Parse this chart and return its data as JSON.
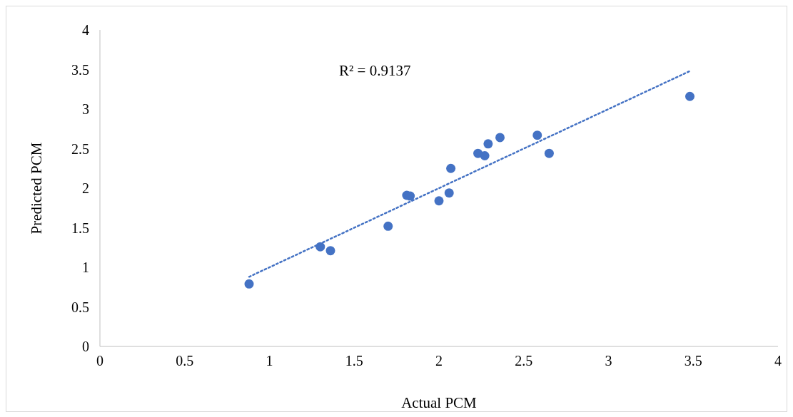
{
  "chart_data": {
    "type": "scatter",
    "xlabel": "Actual PCM",
    "ylabel": "Predicted PCM",
    "xlim": [
      0,
      4
    ],
    "ylim": [
      0,
      4
    ],
    "xticks": [
      0,
      0.5,
      1,
      1.5,
      2,
      2.5,
      3,
      3.5,
      4
    ],
    "yticks": [
      0,
      0.5,
      1,
      1.5,
      2,
      2.5,
      3,
      3.5,
      4
    ],
    "grid": false,
    "annotations": [
      "R² = 0.9137"
    ],
    "series": [
      {
        "color": "#4472c4",
        "marker": "circle",
        "x": [
          0.88,
          1.3,
          1.36,
          1.7,
          1.81,
          1.83,
          2.0,
          2.06,
          2.07,
          2.23,
          2.27,
          2.29,
          2.36,
          2.58,
          2.65,
          3.48
        ],
        "values": [
          0.79,
          1.26,
          1.21,
          1.52,
          1.91,
          1.9,
          1.84,
          1.94,
          2.25,
          2.44,
          2.41,
          2.56,
          2.64,
          2.67,
          2.44,
          3.16
        ]
      },
      {
        "type": "line",
        "color": "#4472c4",
        "line_style": "dotted",
        "marker": "none",
        "x": [
          0.88,
          3.48
        ],
        "values": [
          0.88,
          3.48
        ]
      }
    ]
  }
}
